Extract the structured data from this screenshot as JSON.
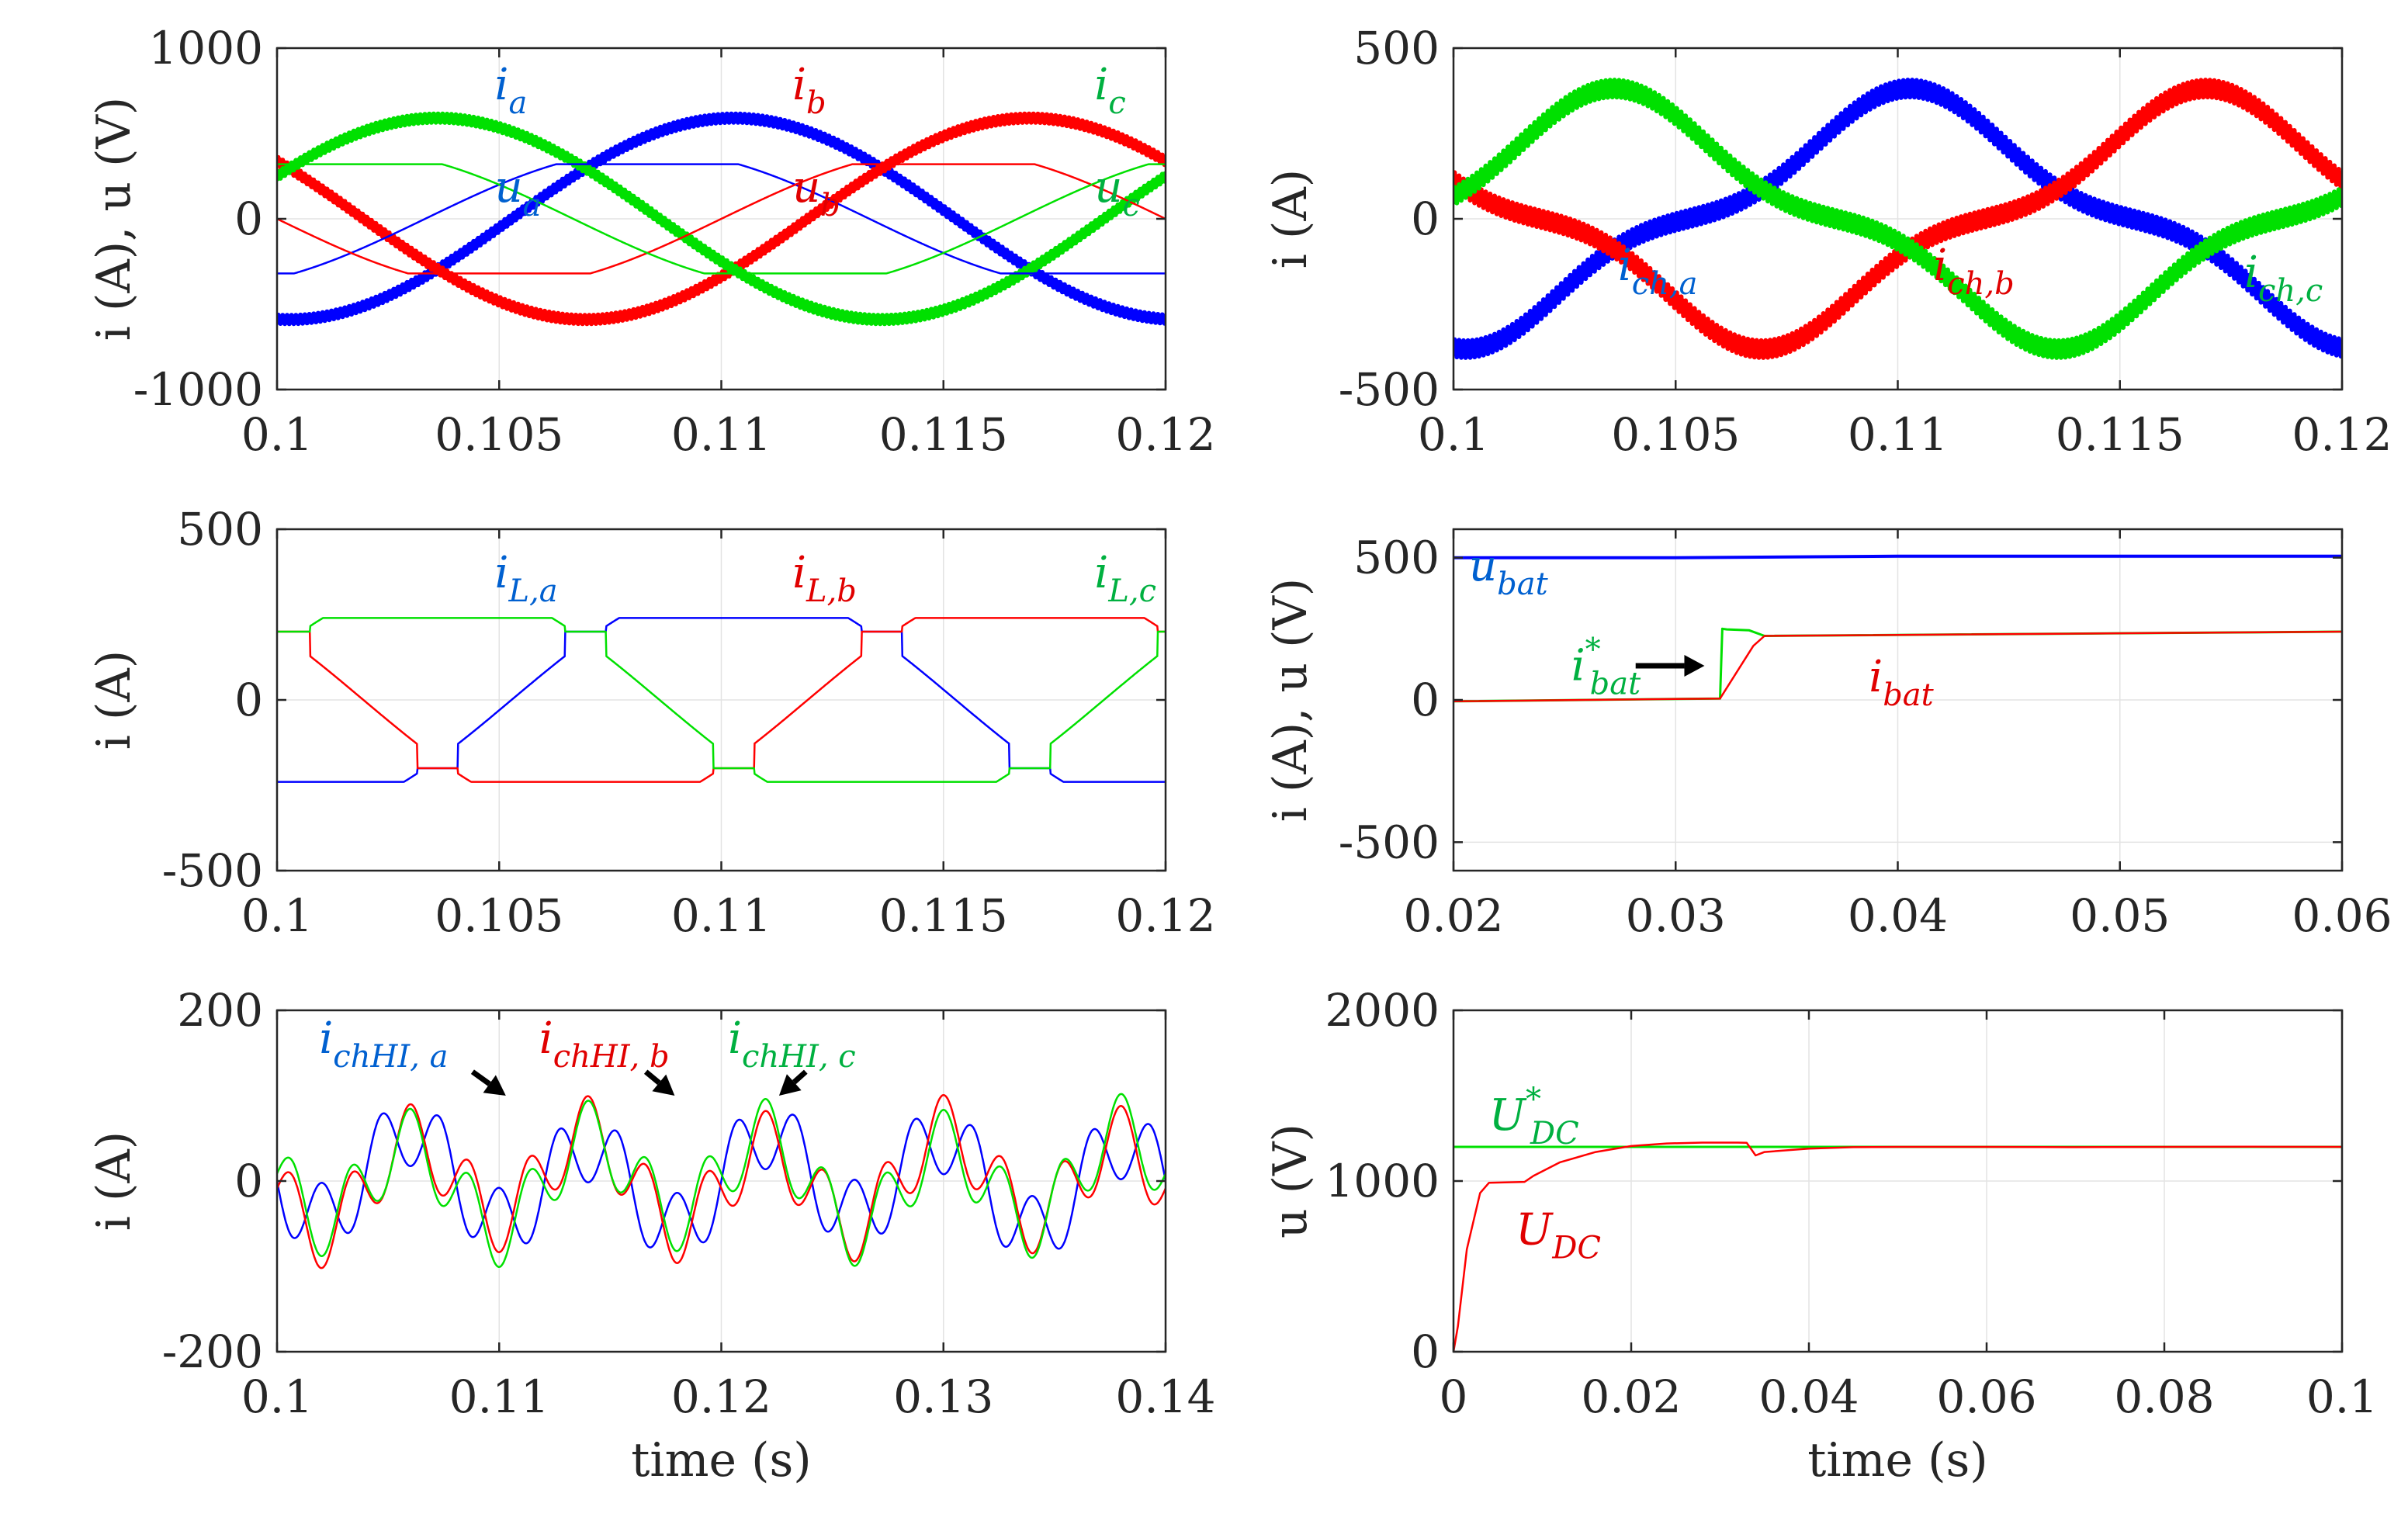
{
  "colors": {
    "blue": "#0000ff",
    "red": "#ff0000",
    "green": "#00e000",
    "label_blue": "#0060d0",
    "label_red": "#e00000",
    "label_green": "#00b040",
    "axis": "#262626"
  },
  "chart_data": [
    {
      "id": "p1",
      "type": "line",
      "ylabel": "i (A), u (V)",
      "xlabel": "",
      "xlim": [
        0.1,
        0.12
      ],
      "ylim": [
        -1000,
        1000
      ],
      "xticks": [
        0.1,
        0.105,
        0.11,
        0.115,
        0.12
      ],
      "xtick_labels": [
        "0.1",
        "0.105",
        "0.11",
        "0.115",
        "0.12"
      ],
      "yticks": [
        -1000,
        0,
        1000
      ],
      "ytick_labels": [
        "-1000",
        "0",
        "1000"
      ],
      "grid": true,
      "series": [
        {
          "name": "i_a",
          "color": "blue",
          "kind": "sine",
          "amp": 590,
          "freq": 50,
          "phase_deg": -95,
          "ripple": 25,
          "ripple_cycles": 260,
          "width": 6
        },
        {
          "name": "i_b",
          "color": "red",
          "kind": "sine",
          "amp": 590,
          "freq": 50,
          "phase_deg": -215,
          "ripple": 25,
          "ripple_cycles": 260,
          "width": 6
        },
        {
          "name": "i_c",
          "color": "green",
          "kind": "sine",
          "amp": 590,
          "freq": 50,
          "phase_deg": 25,
          "ripple": 25,
          "ripple_cycles": 260,
          "width": 6
        },
        {
          "name": "u_a",
          "color": "blue",
          "kind": "trap",
          "amp": 320,
          "freq": 50,
          "phase_deg": -60,
          "width": 2.5
        },
        {
          "name": "u_b",
          "color": "red",
          "kind": "trap",
          "amp": 320,
          "freq": 50,
          "phase_deg": -180,
          "width": 2.5
        },
        {
          "name": "u_c",
          "color": "green",
          "kind": "trap",
          "amp": 320,
          "freq": 50,
          "phase_deg": 60,
          "width": 2.5
        }
      ],
      "labels": [
        {
          "base": "i",
          "sub": "a",
          "color": "label_blue",
          "x": 0.1049,
          "y": 700
        },
        {
          "base": "i",
          "sub": "b",
          "color": "label_red",
          "x": 0.1116,
          "y": 700
        },
        {
          "base": "i",
          "sub": "c",
          "color": "label_green",
          "x": 0.1184,
          "y": 700
        },
        {
          "base": "u",
          "sub": "a",
          "color": "label_blue",
          "x": 0.1049,
          "y": 100
        },
        {
          "base": "u",
          "sub": "b",
          "color": "label_red",
          "x": 0.1116,
          "y": 100
        },
        {
          "base": "u",
          "sub": "c",
          "color": "label_green",
          "x": 0.1184,
          "y": 100
        }
      ]
    },
    {
      "id": "p2",
      "type": "line",
      "ylabel": "i (A)",
      "xlabel": "",
      "xlim": [
        0.1,
        0.12
      ],
      "ylim": [
        -500,
        500
      ],
      "xticks": [
        0.1,
        0.105,
        0.11,
        0.115,
        0.12
      ],
      "xtick_labels": [
        "0.1",
        "0.105",
        "0.11",
        "0.115",
        "0.12"
      ],
      "yticks": [
        -500,
        0,
        500
      ],
      "ytick_labels": [
        "-500",
        "0",
        "500"
      ],
      "grid": true,
      "series": [
        {
          "name": "i_ch,a",
          "color": "blue",
          "kind": "chsine",
          "amp": 340,
          "freq": 50,
          "phase_deg": -95,
          "ripple": 25,
          "ripple_cycles": 260,
          "width": 6
        },
        {
          "name": "i_ch,b",
          "color": "red",
          "kind": "chsine",
          "amp": 340,
          "freq": 50,
          "phase_deg": -215,
          "ripple": 25,
          "ripple_cycles": 260,
          "width": 6
        },
        {
          "name": "i_ch,c",
          "color": "green",
          "kind": "chsine",
          "amp": 340,
          "freq": 50,
          "phase_deg": 25,
          "ripple": 25,
          "ripple_cycles": 260,
          "width": 6
        }
      ],
      "labels": [
        {
          "base": "i",
          "sub": "ch,a",
          "color": "label_blue",
          "x": 0.1037,
          "y": -180
        },
        {
          "base": "i",
          "sub": "ch,b",
          "color": "label_red",
          "x": 0.1108,
          "y": -180
        },
        {
          "base": "i",
          "sub": "ch,c",
          "color": "label_green",
          "x": 0.1178,
          "y": -200
        }
      ]
    },
    {
      "id": "p3",
      "type": "line",
      "ylabel": "i (A)",
      "xlabel": "",
      "xlim": [
        0.1,
        0.12
      ],
      "ylim": [
        -500,
        500
      ],
      "xticks": [
        0.1,
        0.105,
        0.11,
        0.115,
        0.12
      ],
      "xtick_labels": [
        "0.1",
        "0.105",
        "0.11",
        "0.115",
        "0.12"
      ],
      "yticks": [
        -500,
        0,
        500
      ],
      "ytick_labels": [
        "-500",
        "0",
        "500"
      ],
      "grid": true,
      "series": [
        {
          "name": "i_L,a",
          "color": "blue",
          "kind": "lshape",
          "amp": 240,
          "plateau": 200,
          "freq": 50,
          "phase_deg": -95,
          "width": 2.5
        },
        {
          "name": "i_L,b",
          "color": "red",
          "kind": "lshape",
          "amp": 240,
          "plateau": 200,
          "freq": 50,
          "phase_deg": -215,
          "width": 2.5
        },
        {
          "name": "i_L,c",
          "color": "green",
          "kind": "lshape",
          "amp": 240,
          "plateau": 200,
          "freq": 50,
          "phase_deg": 25,
          "width": 2.5
        }
      ],
      "labels": [
        {
          "base": "i",
          "sub": "L,a",
          "color": "label_blue",
          "x": 0.1049,
          "y": 330
        },
        {
          "base": "i",
          "sub": "L,b",
          "color": "label_red",
          "x": 0.1116,
          "y": 330
        },
        {
          "base": "i",
          "sub": "L,c",
          "color": "label_green",
          "x": 0.1184,
          "y": 330
        }
      ]
    },
    {
      "id": "p4",
      "type": "line",
      "ylabel": "i (A), u (V)",
      "xlabel": "",
      "xlim": [
        0.02,
        0.06
      ],
      "ylim": [
        -600,
        600
      ],
      "xticks": [
        0.02,
        0.03,
        0.04,
        0.05,
        0.06
      ],
      "xtick_labels": [
        "0.02",
        "0.03",
        "0.04",
        "0.05",
        "0.06"
      ],
      "yticks": [
        -500,
        0,
        500
      ],
      "ytick_labels": [
        "-500",
        "0",
        "500"
      ],
      "grid": true,
      "series": [
        {
          "name": "u_bat",
          "color": "blue",
          "width": 4,
          "x": [
            0.02,
            0.03,
            0.04,
            0.05,
            0.06
          ],
          "y": [
            500,
            500,
            505,
            505,
            505
          ]
        },
        {
          "name": "i_bat*",
          "color": "green",
          "width": 3,
          "x": [
            0.02,
            0.032,
            0.0321,
            0.0323,
            0.0333,
            0.034,
            0.06
          ],
          "y": [
            -5,
            5,
            250,
            248,
            245,
            225,
            240
          ]
        },
        {
          "name": "i_bat",
          "color": "red",
          "width": 2.5,
          "x": [
            0.02,
            0.032,
            0.0335,
            0.034,
            0.06
          ],
          "y": [
            -5,
            5,
            190,
            225,
            240
          ]
        }
      ],
      "labels": [
        {
          "base": "u",
          "sub": "bat",
          "color": "label_blue",
          "x": 0.0207,
          "y": 420
        },
        {
          "base": "i",
          "sub": "bat",
          "sup": "*",
          "color": "label_green",
          "x": 0.0253,
          "y": 70
        },
        {
          "base": "i",
          "sub": "bat",
          "color": "label_red",
          "x": 0.0387,
          "y": 30
        }
      ],
      "arrows": [
        {
          "x1": 0.0282,
          "y1": 120,
          "x2": 0.0313,
          "y2": 120
        }
      ]
    },
    {
      "id": "p5",
      "type": "line",
      "ylabel": "i (A)",
      "xlabel": "time (s)",
      "xlim": [
        0.1,
        0.14
      ],
      "ylim": [
        -200,
        200
      ],
      "xticks": [
        0.1,
        0.11,
        0.12,
        0.13,
        0.14
      ],
      "xtick_labels": [
        "0.1",
        "0.11",
        "0.12",
        "0.13",
        "0.14"
      ],
      "yticks": [
        -200,
        0,
        200
      ],
      "ytick_labels": [
        "-200",
        "0",
        "200"
      ],
      "grid": true,
      "series": [
        {
          "name": "i_chHI,a",
          "color": "blue",
          "kind": "harm",
          "freq": 125,
          "a1": 10,
          "a3": 70,
          "phase_deg": 0,
          "width": 2.5
        },
        {
          "name": "i_chHI,b",
          "color": "red",
          "kind": "harm",
          "freq": 125,
          "a1": 10,
          "a3": 70,
          "phase_deg": -120,
          "width": 2.5
        },
        {
          "name": "i_chHI,c",
          "color": "green",
          "kind": "harm",
          "freq": 125,
          "a1": 10,
          "a3": 70,
          "phase_deg": 120,
          "width": 2.5
        }
      ],
      "labels": [
        {
          "base": "i",
          "sub": "chHI, a",
          "color": "label_blue",
          "x": 0.1019,
          "y": 150
        },
        {
          "base": "i",
          "sub": "chHI, b",
          "color": "label_red",
          "x": 0.1118,
          "y": 150
        },
        {
          "base": "i",
          "sub": "chHI, c",
          "color": "label_green",
          "x": 0.1203,
          "y": 150
        }
      ],
      "arrows": [
        {
          "x1": 0.1088,
          "y1": 128,
          "x2": 0.1103,
          "y2": 100
        },
        {
          "x1": 0.1166,
          "y1": 128,
          "x2": 0.1179,
          "y2": 100
        },
        {
          "x1": 0.1238,
          "y1": 128,
          "x2": 0.1226,
          "y2": 100
        }
      ]
    },
    {
      "id": "p6",
      "type": "line",
      "ylabel": "u (V)",
      "xlabel": "time (s)",
      "xlim": [
        0,
        0.1
      ],
      "ylim": [
        0,
        2000
      ],
      "xticks": [
        0,
        0.02,
        0.04,
        0.06,
        0.08,
        0.1
      ],
      "xtick_labels": [
        "0",
        "0.02",
        "0.04",
        "0.06",
        "0.08",
        "0.1"
      ],
      "yticks": [
        0,
        1000,
        2000
      ],
      "ytick_labels": [
        "0",
        "1000",
        "2000"
      ],
      "grid": true,
      "series": [
        {
          "name": "U_DC*",
          "color": "green",
          "width": 3,
          "x": [
            0,
            0.1
          ],
          "y": [
            1200,
            1200
          ]
        },
        {
          "name": "U_DC",
          "color": "red",
          "width": 2.5,
          "x": [
            0,
            0.0005,
            0.0015,
            0.003,
            0.004,
            0.008,
            0.009,
            0.012,
            0.016,
            0.02,
            0.024,
            0.028,
            0.03,
            0.032,
            0.033,
            0.034,
            0.035,
            0.04,
            0.045,
            0.05,
            0.06,
            0.07,
            0.08,
            0.09,
            0.1
          ],
          "y": [
            0,
            150,
            600,
            930,
            990,
            995,
            1030,
            1110,
            1170,
            1205,
            1220,
            1225,
            1225,
            1225,
            1224,
            1150,
            1170,
            1190,
            1198,
            1200,
            1200,
            1198,
            1200,
            1201,
            1200
          ]
        }
      ],
      "labels": [
        {
          "base": "U",
          "sub": "DC",
          "sup": "*",
          "color": "label_green",
          "x": 0.004,
          "y": 1300
        },
        {
          "base": "U",
          "sub": "DC",
          "color": "label_red",
          "x": 0.007,
          "y": 630
        }
      ]
    }
  ]
}
